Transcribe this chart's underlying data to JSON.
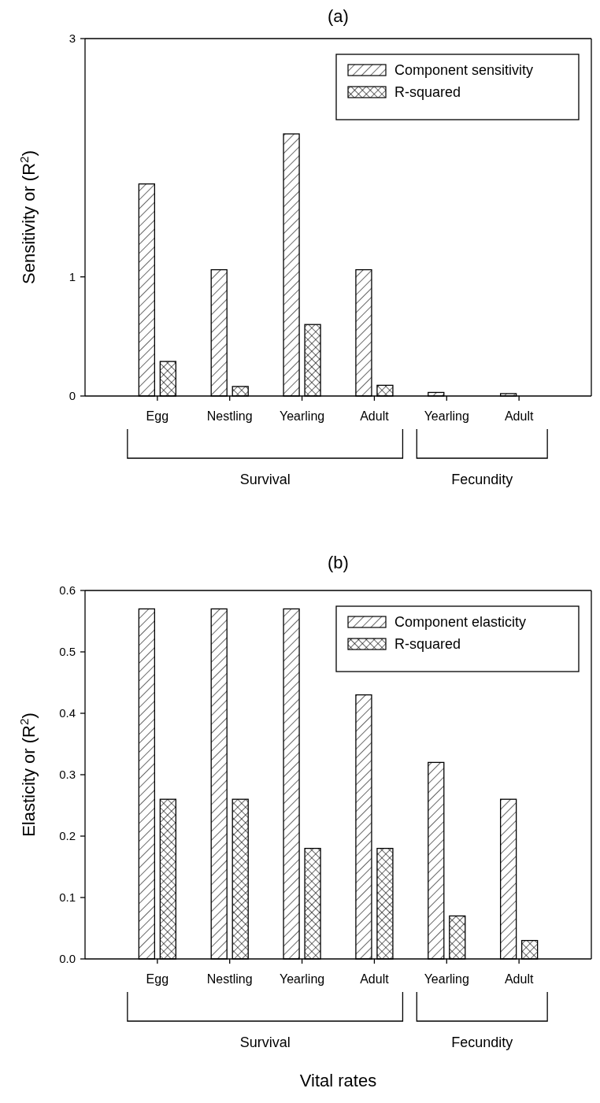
{
  "chart_data": [
    {
      "type": "bar",
      "title": "(a)",
      "ylabel": "Sensitivity or (R$^{2}$)",
      "categories": [
        "Egg",
        "Nestling",
        "Yearling",
        "Adult",
        "Yearling",
        "Adult"
      ],
      "series": [
        {
          "name": "Component sensitivity",
          "color": "#000000",
          "values": [
            1.78,
            1.06,
            2.2,
            1.06,
            0.03,
            0.02
          ]
        },
        {
          "name": "R-squared",
          "color": "#000000",
          "values": [
            0.29,
            0.08,
            0.6,
            0.09,
            0,
            0
          ]
        }
      ],
      "ylim": [
        0,
        3
      ],
      "yticks": [
        0,
        1,
        3
      ],
      "legend": "top right",
      "annotations": [
        "Survival",
        "Fecundity"
      ]
    },
    {
      "type": "bar",
      "title": "(b)",
      "ylabel": "Elasticity or (R$^{2}$)",
      "xlabel": "Vital rates",
      "categories": [
        "Egg",
        "Nestling",
        "Yearling",
        "Adult",
        "Yearling",
        "Adult"
      ],
      "series": [
        {
          "name": "Component elasticity",
          "color": "#000000",
          "values": [
            0.57,
            0.57,
            0.57,
            0.43,
            0.32,
            0.26
          ]
        },
        {
          "name": "R-squared",
          "color": "#000000",
          "values": [
            0.26,
            0.26,
            0.18,
            0.18,
            0.07,
            0.03
          ]
        }
      ],
      "ylim": [
        0,
        0.6
      ],
      "yticks": [
        {
          "value": 0,
          "label": "0.0"
        },
        0.1,
        0.2,
        0.3,
        0.4,
        0.5,
        0.6
      ],
      "legend": "top right",
      "annotations": [
        "Survival",
        "Fecundity"
      ]
    }
  ]
}
